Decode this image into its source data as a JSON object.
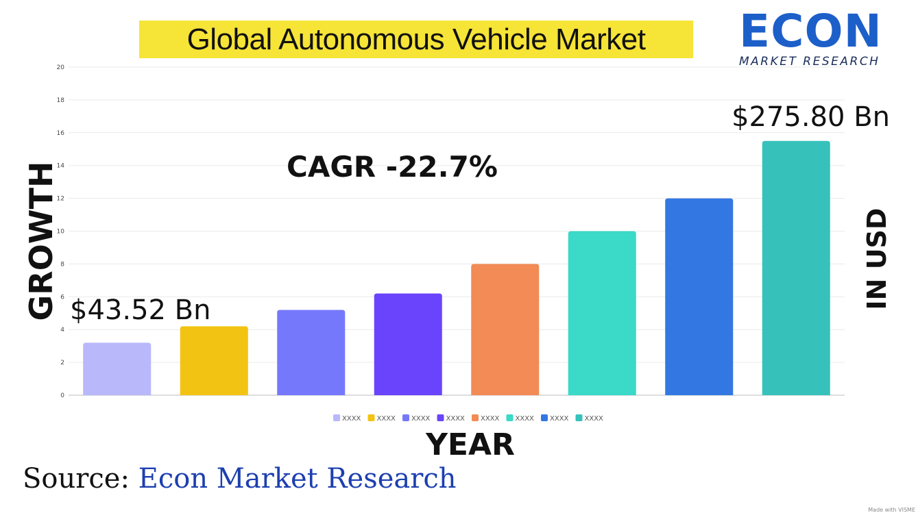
{
  "title": "Global Autonomous Vehicle Market",
  "logo": {
    "wordmark": "ECON",
    "tagline": "MARKET RESEARCH",
    "colors": [
      "#1d5fc9",
      "#2a9d3a",
      "#f2c318"
    ]
  },
  "source": {
    "label": "Source:",
    "value": "Econ Market Research"
  },
  "watermark": "Made with VISME",
  "chart_data": {
    "type": "bar",
    "categories": [
      "XXXX",
      "XXXX",
      "XXXX",
      "XXXX",
      "XXXX",
      "XXXX",
      "XXXX",
      "XXXX"
    ],
    "values": [
      3.2,
      4.2,
      5.2,
      6.2,
      8.0,
      10.0,
      12.0,
      15.5
    ],
    "colors": [
      "#b8b8fb",
      "#f2c313",
      "#7678fc",
      "#6a44fc",
      "#f28b55",
      "#3ad9c8",
      "#3378e2",
      "#36c2bb"
    ],
    "ylim": [
      0,
      20
    ],
    "yticks": [
      0,
      2,
      4,
      6,
      8,
      10,
      12,
      14,
      16,
      18,
      20
    ],
    "ylabel": "GROWTH",
    "xlabel": "YEAR",
    "y2label": "IN USD",
    "grid": true,
    "legend": "bottom",
    "annotations": {
      "first_value": "$43.52 Bn",
      "last_value": "$275.80 Bn",
      "cagr": "CAGR -22.7%"
    }
  }
}
